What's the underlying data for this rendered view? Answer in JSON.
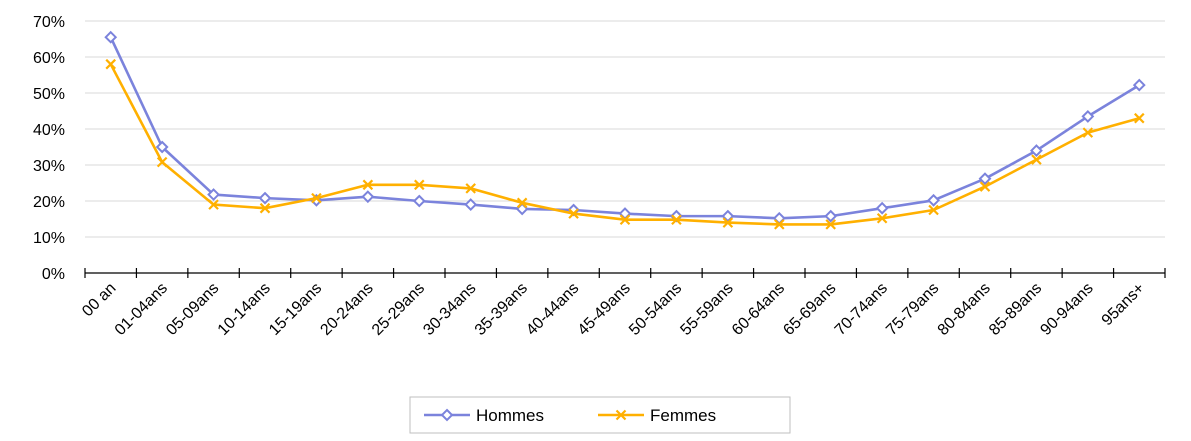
{
  "chart_data": {
    "type": "line",
    "categories": [
      "00 an",
      "01-04ans",
      "05-09ans",
      "10-14ans",
      "15-19ans",
      "20-24ans",
      "25-29ans",
      "30-34ans",
      "35-39ans",
      "40-44ans",
      "45-49ans",
      "50-54ans",
      "55-59ans",
      "60-64ans",
      "65-69ans",
      "70-74ans",
      "75-79ans",
      "80-84ans",
      "85-89ans",
      "90-94ans",
      "95ans+"
    ],
    "series": [
      {
        "name": "Hommes",
        "color": "#7b83dc",
        "marker": "diamond",
        "values": [
          65.5,
          35.0,
          21.8,
          20.8,
          20.2,
          21.2,
          20.0,
          19.0,
          17.8,
          17.5,
          16.5,
          15.8,
          15.8,
          15.2,
          15.8,
          18.0,
          20.2,
          26.2,
          34.0,
          43.5,
          52.2
        ]
      },
      {
        "name": "Femmes",
        "color": "#ffb000",
        "marker": "x",
        "values": [
          58.0,
          30.8,
          19.0,
          18.0,
          20.8,
          24.5,
          24.5,
          23.5,
          19.5,
          16.5,
          14.8,
          14.8,
          14.0,
          13.5,
          13.5,
          15.2,
          17.5,
          24.0,
          31.5,
          39.0,
          43.0
        ]
      }
    ],
    "y_ticks": [
      "0%",
      "10%",
      "20%",
      "30%",
      "40%",
      "50%",
      "60%",
      "70%"
    ],
    "ylim": [
      0,
      70
    ],
    "grid": true,
    "legend_position": "bottom-center",
    "title": "",
    "xlabel": "",
    "ylabel": ""
  }
}
